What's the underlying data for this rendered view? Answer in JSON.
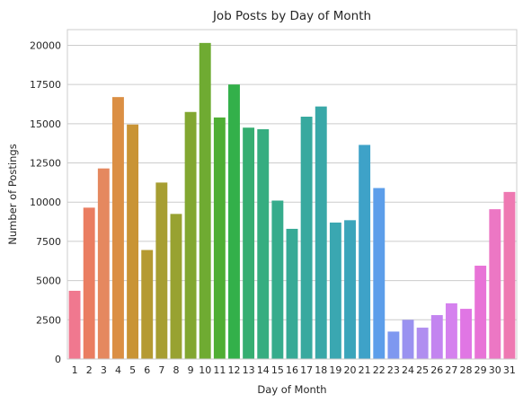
{
  "chart_data": {
    "type": "bar",
    "title": "Job Posts by Day of Month",
    "xlabel": "Day of Month",
    "ylabel": "Number of Postings",
    "ylim": [
      0,
      21000
    ],
    "yticks": [
      0,
      2500,
      5000,
      7500,
      10000,
      12500,
      15000,
      17500,
      20000
    ],
    "grid": true,
    "categories": [
      "1",
      "2",
      "3",
      "4",
      "5",
      "6",
      "7",
      "8",
      "9",
      "10",
      "11",
      "12",
      "13",
      "14",
      "15",
      "16",
      "17",
      "18",
      "19",
      "20",
      "21",
      "22",
      "23",
      "24",
      "25",
      "26",
      "27",
      "28",
      "29",
      "30",
      "31"
    ],
    "values": [
      4350,
      9650,
      12150,
      16700,
      14950,
      6950,
      11250,
      9250,
      15750,
      20150,
      15400,
      17500,
      14750,
      14650,
      10100,
      8300,
      15450,
      16100,
      8700,
      8850,
      13650,
      10900,
      1750,
      2500,
      2000,
      2800,
      3550,
      3200,
      5950,
      9550,
      10650
    ],
    "colors": [
      "#f0788f",
      "#ea7d61",
      "#e5885f",
      "#db8f44",
      "#c99435",
      "#b59a32",
      "#a79e32",
      "#98a231",
      "#82a731",
      "#6fab32",
      "#4fae34",
      "#33b04a",
      "#36ae71",
      "#36ad80",
      "#36ac8c",
      "#37aa96",
      "#38a99f",
      "#39a8a8",
      "#3aa7b1",
      "#3ba5bb",
      "#3ea2c8",
      "#5c9eea",
      "#7e98f0",
      "#9a92f0",
      "#b08ef0",
      "#c384f0",
      "#d581ee",
      "#e076e4",
      "#e873d7",
      "#ec77c4",
      "#ee79b2"
    ]
  }
}
